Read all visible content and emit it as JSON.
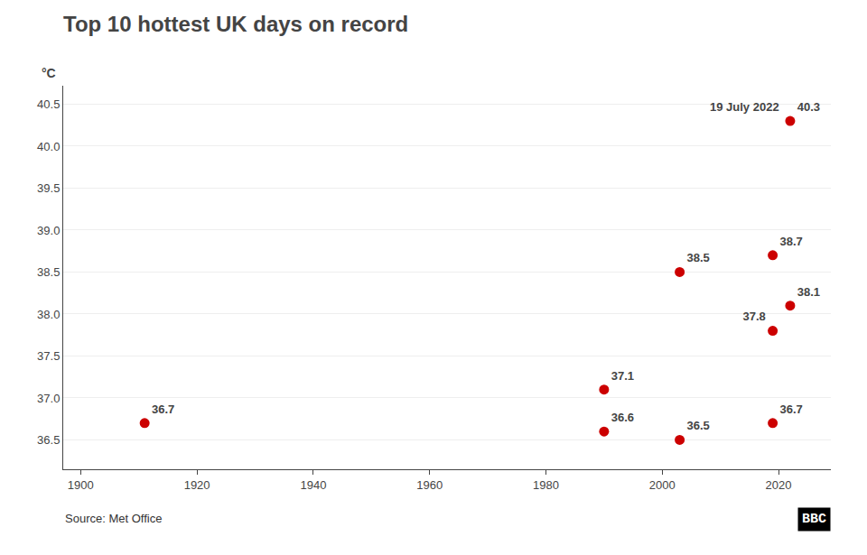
{
  "chart_data": {
    "type": "scatter",
    "title": "Top 10 hottest UK days on record",
    "ylabel": "°C",
    "x": [
      1911,
      1990,
      1990,
      2003,
      2003,
      2019,
      2019,
      2019,
      2022,
      2022
    ],
    "values": [
      36.7,
      37.1,
      36.6,
      38.5,
      36.5,
      38.7,
      36.7,
      37.8,
      40.3,
      38.1
    ],
    "color": "#cc0000",
    "data_labels": true,
    "annotations": [
      {
        "text": "19 July 2022",
        "x": 2022,
        "y": 40.3
      }
    ],
    "source": "Source: Met Office",
    "logo": "BBC",
    "xlim": [
      1897,
      2029
    ],
    "ylim": [
      36.15,
      40.72
    ],
    "xticks": [
      1900,
      1920,
      1940,
      1960,
      1980,
      2000,
      2020
    ],
    "yticks": [
      36.5,
      {
        "value": 37,
        "label": "37.0"
      },
      37.5,
      {
        "value": 38,
        "label": "38.0"
      },
      38.5,
      {
        "value": 39,
        "label": "39.0"
      },
      39.5,
      {
        "value": 40,
        "label": "40.0"
      },
      40.5
    ],
    "grid": "y"
  }
}
